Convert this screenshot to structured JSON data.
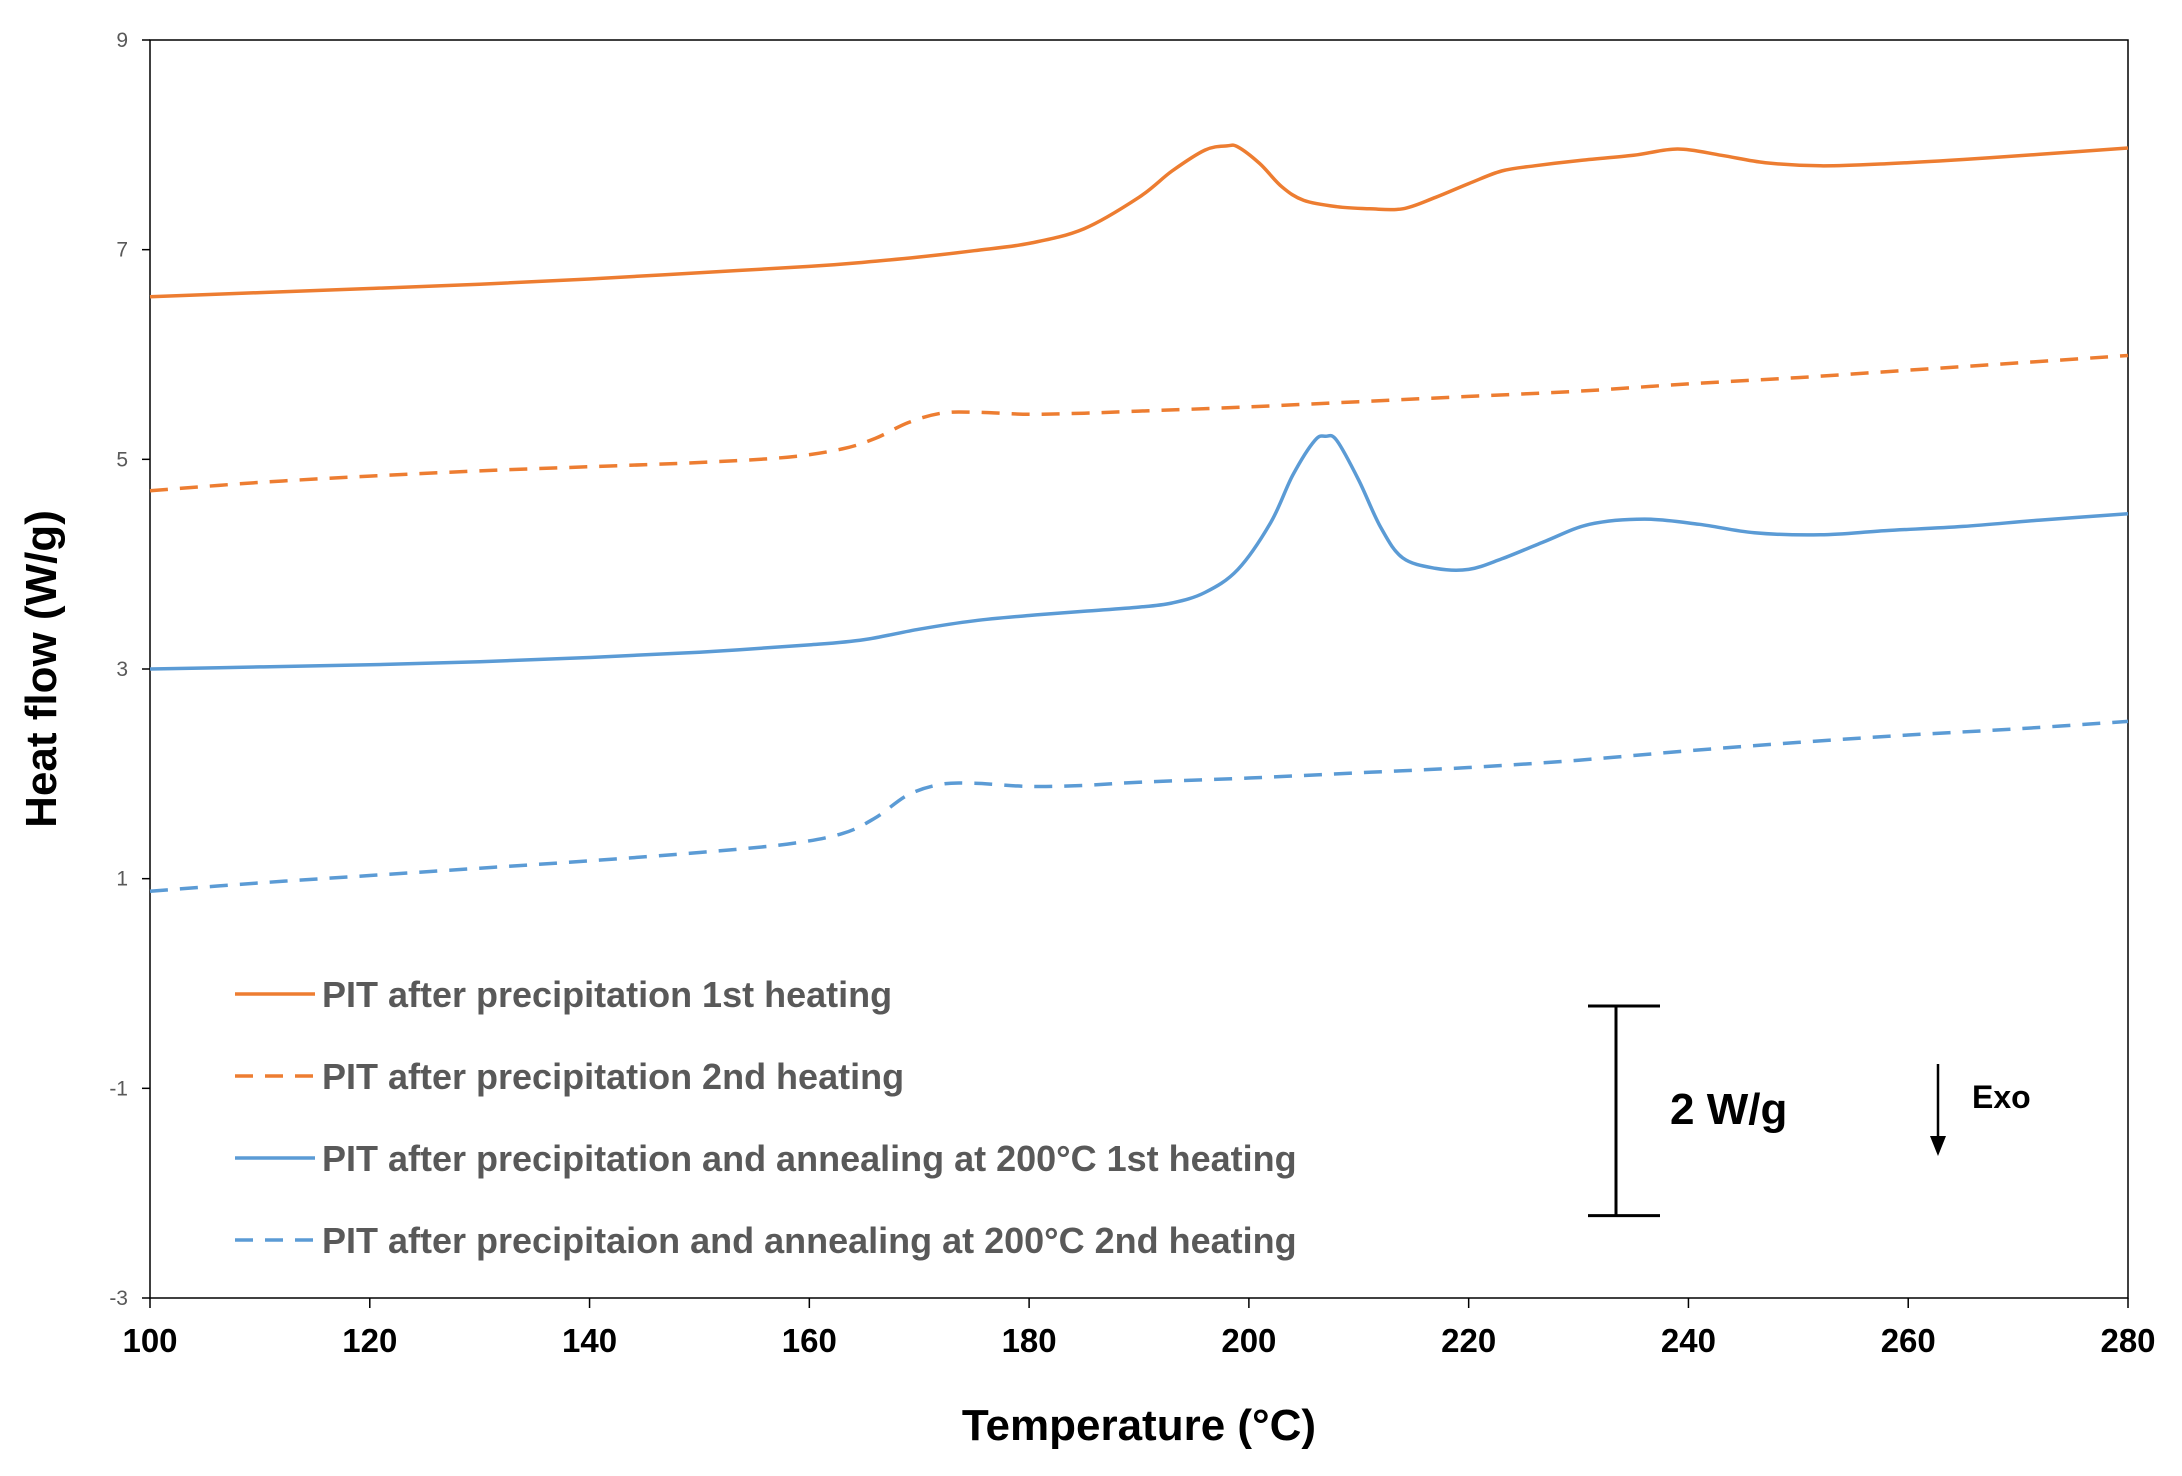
{
  "chart_data": {
    "type": "line",
    "title": "",
    "xlabel": "Temperature (°C)",
    "ylabel": "Heat flow (W/g)",
    "xlim": [
      100,
      280
    ],
    "ylim": [
      -3,
      9
    ],
    "xticks": [
      100,
      120,
      140,
      160,
      180,
      200,
      220,
      240,
      260,
      280
    ],
    "yticks": [
      -3,
      -1,
      1,
      3,
      5,
      7,
      9
    ],
    "grid": false,
    "legend_position": "bottom-left",
    "series": [
      {
        "name": "PIT after precipitation 1st heating",
        "color": "#ED7D31",
        "dash": "solid",
        "points": [
          [
            100,
            6.55
          ],
          [
            110,
            6.59
          ],
          [
            120,
            6.63
          ],
          [
            130,
            6.67
          ],
          [
            140,
            6.72
          ],
          [
            150,
            6.78
          ],
          [
            160,
            6.84
          ],
          [
            165,
            6.88
          ],
          [
            170,
            6.93
          ],
          [
            175,
            6.99
          ],
          [
            180,
            7.06
          ],
          [
            185,
            7.2
          ],
          [
            190,
            7.5
          ],
          [
            193,
            7.75
          ],
          [
            196,
            7.95
          ],
          [
            198,
            7.99
          ],
          [
            199,
            7.98
          ],
          [
            201,
            7.82
          ],
          [
            203,
            7.6
          ],
          [
            205,
            7.47
          ],
          [
            208,
            7.41
          ],
          [
            211,
            7.39
          ],
          [
            214,
            7.39
          ],
          [
            217,
            7.5
          ],
          [
            220,
            7.63
          ],
          [
            223,
            7.75
          ],
          [
            226,
            7.8
          ],
          [
            230,
            7.85
          ],
          [
            235,
            7.9
          ],
          [
            239,
            7.96
          ],
          [
            243,
            7.9
          ],
          [
            247,
            7.83
          ],
          [
            252,
            7.8
          ],
          [
            258,
            7.82
          ],
          [
            265,
            7.86
          ],
          [
            272,
            7.91
          ],
          [
            280,
            7.97
          ]
        ]
      },
      {
        "name": "PIT after precipitation 2nd heating",
        "color": "#ED7D31",
        "dash": "dashed",
        "points": [
          [
            100,
            4.7
          ],
          [
            110,
            4.78
          ],
          [
            120,
            4.84
          ],
          [
            130,
            4.89
          ],
          [
            140,
            4.93
          ],
          [
            150,
            4.97
          ],
          [
            158,
            5.02
          ],
          [
            163,
            5.1
          ],
          [
            166,
            5.2
          ],
          [
            169,
            5.35
          ],
          [
            172,
            5.44
          ],
          [
            175,
            5.45
          ],
          [
            180,
            5.43
          ],
          [
            185,
            5.44
          ],
          [
            190,
            5.46
          ],
          [
            200,
            5.5
          ],
          [
            210,
            5.55
          ],
          [
            220,
            5.6
          ],
          [
            230,
            5.65
          ],
          [
            240,
            5.72
          ],
          [
            250,
            5.78
          ],
          [
            260,
            5.85
          ],
          [
            270,
            5.92
          ],
          [
            280,
            5.99
          ]
        ]
      },
      {
        "name": "PIT after precipitation and annealing at 200°C 1st heating",
        "color": "#5B9BD5",
        "dash": "solid",
        "points": [
          [
            100,
            3.0
          ],
          [
            110,
            3.02
          ],
          [
            120,
            3.04
          ],
          [
            130,
            3.07
          ],
          [
            140,
            3.11
          ],
          [
            150,
            3.16
          ],
          [
            160,
            3.23
          ],
          [
            165,
            3.28
          ],
          [
            170,
            3.38
          ],
          [
            175,
            3.46
          ],
          [
            180,
            3.51
          ],
          [
            185,
            3.55
          ],
          [
            190,
            3.59
          ],
          [
            193,
            3.63
          ],
          [
            196,
            3.73
          ],
          [
            199,
            3.95
          ],
          [
            202,
            4.4
          ],
          [
            204,
            4.85
          ],
          [
            206,
            5.18
          ],
          [
            207,
            5.22
          ],
          [
            208,
            5.18
          ],
          [
            210,
            4.8
          ],
          [
            212,
            4.35
          ],
          [
            214,
            4.06
          ],
          [
            217,
            3.96
          ],
          [
            220,
            3.95
          ],
          [
            223,
            4.05
          ],
          [
            227,
            4.22
          ],
          [
            231,
            4.38
          ],
          [
            236,
            4.43
          ],
          [
            241,
            4.38
          ],
          [
            246,
            4.3
          ],
          [
            252,
            4.28
          ],
          [
            258,
            4.32
          ],
          [
            265,
            4.36
          ],
          [
            272,
            4.42
          ],
          [
            280,
            4.48
          ]
        ]
      },
      {
        "name": "PIT after precipitaion and annealing at 200°C 2nd heating",
        "color": "#5B9BD5",
        "dash": "dashed",
        "points": [
          [
            100,
            0.88
          ],
          [
            110,
            0.96
          ],
          [
            120,
            1.03
          ],
          [
            130,
            1.1
          ],
          [
            140,
            1.17
          ],
          [
            150,
            1.25
          ],
          [
            158,
            1.33
          ],
          [
            163,
            1.43
          ],
          [
            166,
            1.58
          ],
          [
            169,
            1.8
          ],
          [
            172,
            1.9
          ],
          [
            175,
            1.91
          ],
          [
            180,
            1.88
          ],
          [
            185,
            1.89
          ],
          [
            190,
            1.92
          ],
          [
            200,
            1.96
          ],
          [
            210,
            2.01
          ],
          [
            220,
            2.06
          ],
          [
            230,
            2.13
          ],
          [
            240,
            2.22
          ],
          [
            250,
            2.3
          ],
          [
            260,
            2.37
          ],
          [
            270,
            2.43
          ],
          [
            280,
            2.5
          ]
        ]
      }
    ],
    "annotations": {
      "scale_bar_label": "2 W/g",
      "scale_bar_value": 2,
      "exo_label": "Exo",
      "exo_direction": "down"
    }
  }
}
